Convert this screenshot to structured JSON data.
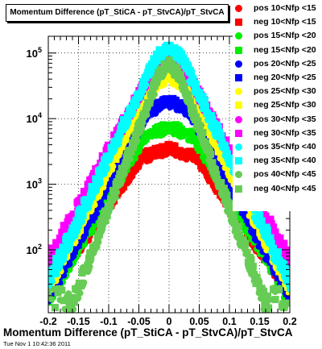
{
  "title": "Momentum Difference (pT_StiCA - pT_StvCA)/pT_StvCA",
  "xlabel": "Momentum Difference (pT_StiCA - pT_StvCA)/pT_StvCA",
  "timestamp": "Tue Nov  1 10:42:36 2011",
  "chart_data": {
    "type": "scatter",
    "title": "Momentum Difference (pT_StiCA - pT_StvCA)/pT_StvCA",
    "xlabel": "Momentum Difference (pT_StiCA - pT_StvCA)/pT_StvCA",
    "ylabel": "",
    "xlim": [
      -0.2,
      0.2
    ],
    "ylim": [
      11,
      180000
    ],
    "yscale": "log",
    "grid": true,
    "legend_position": "right",
    "x_ticks": [
      -0.2,
      -0.15,
      -0.1,
      -0.05,
      0,
      0.05,
      0.1,
      0.15,
      0.2
    ],
    "x_tick_labels": [
      "-0.2",
      "-0.15",
      "-0.1",
      "-0.05",
      "0",
      "0.05",
      "0.1",
      "0.15",
      "0.2"
    ],
    "y_ticks": [
      100,
      1000,
      10000,
      100000
    ],
    "y_tick_labels": [
      {
        "base": "10",
        "exp": "2"
      },
      {
        "base": "10",
        "exp": "3"
      },
      {
        "base": "10",
        "exp": "4"
      },
      {
        "base": "10",
        "exp": "5"
      }
    ],
    "series": [
      {
        "name": "pos 10<Nfp <15",
        "color": "#ff0000",
        "marker": "circle",
        "peak": 3300,
        "slope": 30.5,
        "core": 0.045,
        "coreslope": 13.0
      },
      {
        "name": "neg 10<Nfp <15",
        "color": "#ff0000",
        "marker": "square",
        "peak": 3600,
        "slope": 30.0,
        "core": 0.045,
        "coreslope": 13.0
      },
      {
        "name": "pos 15<Nfp <20",
        "color": "#00ee00",
        "marker": "circle",
        "peak": 7000,
        "slope": 35.5,
        "core": 0.04,
        "coreslope": 16.0
      },
      {
        "name": "neg 15<Nfp <20",
        "color": "#00ee00",
        "marker": "square",
        "peak": 7800,
        "slope": 35.0,
        "core": 0.04,
        "coreslope": 16.0
      },
      {
        "name": "pos 20<Nfp <25",
        "color": "#0000ff",
        "marker": "circle",
        "peak": 17000,
        "slope": 39.0,
        "core": 0.035,
        "coreslope": 20.0
      },
      {
        "name": "neg 20<Nfp <25",
        "color": "#0000ff",
        "marker": "square",
        "peak": 19000,
        "slope": 39.0,
        "core": 0.035,
        "coreslope": 20.0
      },
      {
        "name": "pos 25<Nfp <30",
        "color": "#ffff00",
        "marker": "circle",
        "peak": 40000,
        "slope": 41.0,
        "core": 0.03,
        "coreslope": 25.0
      },
      {
        "name": "neg 25<Nfp <30",
        "color": "#ffff00",
        "marker": "square",
        "peak": 45000,
        "slope": 41.0,
        "core": 0.03,
        "coreslope": 25.0
      },
      {
        "name": "pos 30<Nfp <35",
        "color": "#ff00ff",
        "marker": "circle",
        "peak": 80000,
        "slope": 39.0,
        "core": 0.025,
        "coreslope": 30.0
      },
      {
        "name": "neg 30<Nfp <35",
        "color": "#ff00ff",
        "marker": "square",
        "peak": 90000,
        "slope": 39.0,
        "core": 0.025,
        "coreslope": 30.0
      },
      {
        "name": "pos 35<Nfp <40",
        "color": "#00ffff",
        "marker": "circle",
        "peak": 110000,
        "slope": 44.0,
        "core": 0.02,
        "coreslope": 35.0
      },
      {
        "name": "neg 35<Nfp <40",
        "color": "#00ffff",
        "marker": "square",
        "peak": 130000,
        "slope": 44.0,
        "core": 0.02,
        "coreslope": 35.0
      },
      {
        "name": "pos 40<Nfp <45",
        "color": "#66cc55",
        "marker": "circle",
        "peak": 60000,
        "slope": 56.0,
        "core": 0.015,
        "coreslope": 40.0
      },
      {
        "name": "neg 40<Nfp <45",
        "color": "#66cc55",
        "marker": "square",
        "peak": 70000,
        "slope": 56.0,
        "core": 0.015,
        "coreslope": 40.0
      }
    ]
  }
}
